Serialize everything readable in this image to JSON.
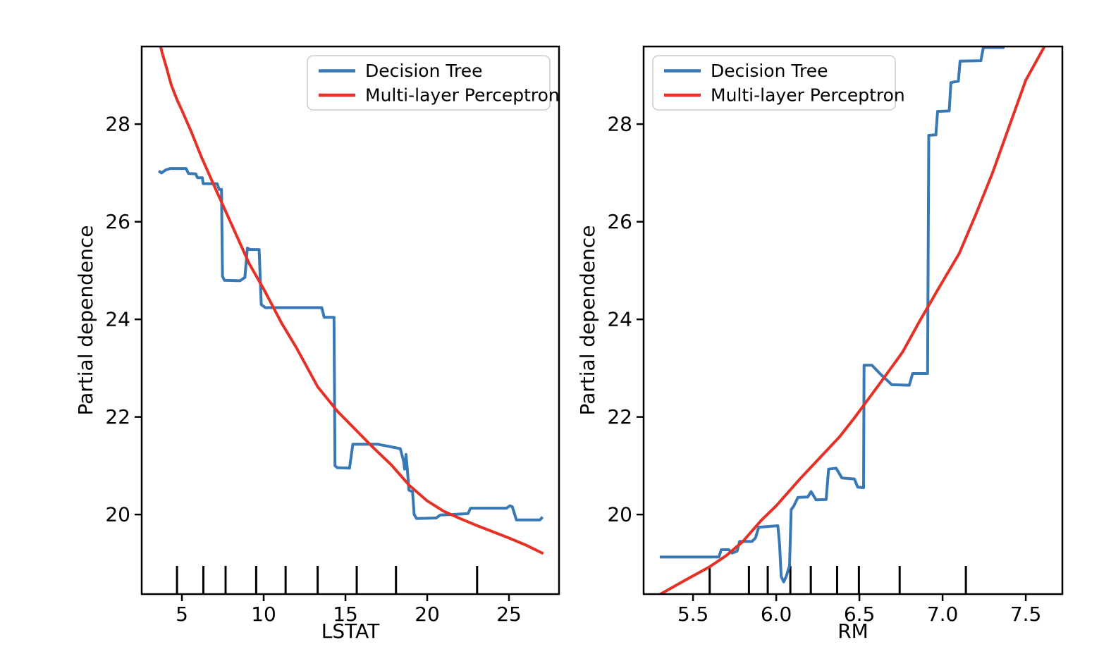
{
  "figure": {
    "background": "#ffffff",
    "axis_color": "#000000",
    "tick_label_color": "#262626",
    "legend_border_color": "#cccccc",
    "legend_bg": "#ffffff"
  },
  "chart_data": [
    {
      "type": "line",
      "title": "",
      "xlabel": "LSTAT",
      "ylabel": "Partial dependence",
      "xlim": [
        2.54,
        28.06
      ],
      "ylim": [
        18.37,
        29.59
      ],
      "grid": false,
      "xticks": {
        "values": [
          5,
          10,
          15,
          20,
          25
        ],
        "labels": [
          "5",
          "10",
          "15",
          "20",
          "25"
        ]
      },
      "yticks": {
        "values": [
          20,
          22,
          24,
          26,
          28
        ],
        "labels": [
          "20",
          "22",
          "24",
          "26",
          "28"
        ]
      },
      "legend": {
        "position": "upper right",
        "entries": [
          {
            "label": "Decision Tree",
            "color": "#3878b4"
          },
          {
            "label": "Multi-layer Perceptron",
            "color": "#e53125"
          }
        ]
      },
      "rug_x": [
        4.7,
        6.31,
        7.67,
        9.54,
        11.34,
        13.3,
        15.69,
        18.09,
        23.05
      ],
      "series": [
        {
          "name": "Decision Tree",
          "color": "#3878b4",
          "points": [
            [
              3.58,
              27.04
            ],
            [
              3.75,
              27.0
            ],
            [
              4.0,
              27.06
            ],
            [
              4.3,
              27.09
            ],
            [
              5.25,
              27.09
            ],
            [
              5.4,
              26.99
            ],
            [
              5.85,
              26.98
            ],
            [
              5.95,
              26.9
            ],
            [
              6.25,
              26.9
            ],
            [
              6.3,
              26.78
            ],
            [
              7.15,
              26.78
            ],
            [
              7.28,
              26.66
            ],
            [
              7.42,
              26.66
            ],
            [
              7.48,
              24.88
            ],
            [
              7.6,
              24.8
            ],
            [
              8.55,
              24.79
            ],
            [
              8.85,
              24.86
            ],
            [
              9.0,
              25.46
            ],
            [
              9.15,
              25.43
            ],
            [
              9.72,
              25.43
            ],
            [
              9.85,
              24.3
            ],
            [
              10.1,
              24.24
            ],
            [
              13.55,
              24.24
            ],
            [
              13.7,
              24.04
            ],
            [
              14.3,
              24.04
            ],
            [
              14.36,
              21.0
            ],
            [
              14.5,
              20.96
            ],
            [
              15.25,
              20.95
            ],
            [
              15.45,
              21.44
            ],
            [
              17.0,
              21.44
            ],
            [
              17.6,
              21.4
            ],
            [
              18.35,
              21.35
            ],
            [
              18.55,
              21.1
            ],
            [
              18.62,
              20.93
            ],
            [
              18.7,
              21.23
            ],
            [
              18.78,
              20.95
            ],
            [
              18.88,
              20.5
            ],
            [
              19.1,
              20.47
            ],
            [
              19.2,
              20.0
            ],
            [
              19.35,
              19.92
            ],
            [
              20.55,
              19.93
            ],
            [
              20.8,
              19.99
            ],
            [
              21.5,
              20.0
            ],
            [
              22.5,
              20.02
            ],
            [
              22.65,
              20.13
            ],
            [
              24.85,
              20.13
            ],
            [
              25.05,
              20.18
            ],
            [
              25.2,
              20.16
            ],
            [
              25.45,
              19.89
            ],
            [
              26.9,
              19.89
            ],
            [
              27.05,
              19.95
            ]
          ]
        },
        {
          "name": "Multi-layer Perceptron",
          "color": "#e53125",
          "points": [
            [
              3.62,
              29.7
            ],
            [
              3.8,
              29.45
            ],
            [
              4.0,
              29.22
            ],
            [
              4.35,
              28.8
            ],
            [
              4.7,
              28.5
            ],
            [
              5.0,
              28.28
            ],
            [
              5.6,
              27.82
            ],
            [
              6.2,
              27.32
            ],
            [
              7.1,
              26.64
            ],
            [
              8.0,
              25.97
            ],
            [
              9.1,
              25.15
            ],
            [
              10.0,
              24.62
            ],
            [
              11.1,
              23.92
            ],
            [
              12.0,
              23.42
            ],
            [
              13.3,
              22.62
            ],
            [
              14.5,
              22.12
            ],
            [
              15.5,
              21.78
            ],
            [
              16.7,
              21.37
            ],
            [
              17.8,
              21.02
            ],
            [
              18.9,
              20.6
            ],
            [
              20.0,
              20.28
            ],
            [
              21.0,
              20.07
            ],
            [
              22.0,
              19.92
            ],
            [
              23.0,
              19.78
            ],
            [
              24.0,
              19.65
            ],
            [
              25.0,
              19.52
            ],
            [
              26.0,
              19.38
            ],
            [
              27.1,
              19.2
            ]
          ]
        }
      ]
    },
    {
      "type": "line",
      "title": "",
      "xlabel": "RM",
      "ylabel": "Partial dependence",
      "xlim": [
        5.203,
        7.72
      ],
      "ylim": [
        18.37,
        29.59
      ],
      "grid": false,
      "xticks": {
        "values": [
          5.5,
          6.0,
          6.5,
          7.0,
          7.5
        ],
        "labels": [
          "5.5",
          "6.0",
          "6.5",
          "7.0",
          "7.5"
        ]
      },
      "yticks": {
        "values": [
          20,
          22,
          24,
          26,
          28
        ],
        "labels": [
          "20",
          "22",
          "24",
          "26",
          "28"
        ]
      },
      "legend": {
        "position": "upper left",
        "entries": [
          {
            "label": "Decision Tree",
            "color": "#3878b4"
          },
          {
            "label": "Multi-layer Perceptron",
            "color": "#e53125"
          }
        ]
      },
      "rug_x": [
        5.6,
        5.836,
        5.949,
        6.085,
        6.208,
        6.366,
        6.497,
        6.742,
        7.14
      ],
      "series": [
        {
          "name": "Decision Tree",
          "color": "#3878b4",
          "points": [
            [
              5.3,
              19.13
            ],
            [
              5.655,
              19.13
            ],
            [
              5.67,
              19.28
            ],
            [
              5.715,
              19.28
            ],
            [
              5.735,
              19.21
            ],
            [
              5.765,
              19.25
            ],
            [
              5.78,
              19.45
            ],
            [
              5.855,
              19.45
            ],
            [
              5.875,
              19.52
            ],
            [
              5.895,
              19.74
            ],
            [
              6.01,
              19.77
            ],
            [
              6.02,
              19.4
            ],
            [
              6.03,
              18.73
            ],
            [
              6.045,
              18.62
            ],
            [
              6.06,
              18.73
            ],
            [
              6.08,
              18.95
            ],
            [
              6.09,
              20.1
            ],
            [
              6.105,
              20.17
            ],
            [
              6.13,
              20.35
            ],
            [
              6.19,
              20.36
            ],
            [
              6.21,
              20.47
            ],
            [
              6.24,
              20.3
            ],
            [
              6.3,
              20.31
            ],
            [
              6.315,
              20.93
            ],
            [
              6.36,
              20.95
            ],
            [
              6.395,
              20.75
            ],
            [
              6.47,
              20.73
            ],
            [
              6.49,
              20.56
            ],
            [
              6.525,
              20.55
            ],
            [
              6.528,
              23.06
            ],
            [
              6.575,
              23.06
            ],
            [
              6.62,
              22.9
            ],
            [
              6.695,
              22.66
            ],
            [
              6.8,
              22.65
            ],
            [
              6.82,
              22.89
            ],
            [
              6.91,
              22.89
            ],
            [
              6.917,
              27.77
            ],
            [
              6.96,
              27.78
            ],
            [
              6.97,
              28.26
            ],
            [
              7.04,
              28.27
            ],
            [
              7.05,
              28.85
            ],
            [
              7.095,
              28.88
            ],
            [
              7.105,
              29.29
            ],
            [
              7.23,
              29.3
            ],
            [
              7.245,
              29.57
            ],
            [
              7.365,
              29.57
            ],
            [
              7.38,
              29.8
            ]
          ]
        },
        {
          "name": "Multi-layer Perceptron",
          "color": "#e53125",
          "points": [
            [
              5.26,
              18.3
            ],
            [
              5.31,
              18.38
            ],
            [
              5.45,
              18.65
            ],
            [
              5.6,
              18.93
            ],
            [
              5.7,
              19.16
            ],
            [
              5.8,
              19.45
            ],
            [
              5.91,
              19.88
            ],
            [
              6.0,
              20.18
            ],
            [
              6.14,
              20.72
            ],
            [
              6.25,
              21.12
            ],
            [
              6.38,
              21.59
            ],
            [
              6.47,
              21.98
            ],
            [
              6.55,
              22.35
            ],
            [
              6.63,
              22.72
            ],
            [
              6.76,
              23.33
            ],
            [
              6.86,
              23.95
            ],
            [
              6.97,
              24.6
            ],
            [
              7.1,
              25.35
            ],
            [
              7.2,
              26.15
            ],
            [
              7.3,
              27.0
            ],
            [
              7.4,
              27.95
            ],
            [
              7.5,
              28.9
            ],
            [
              7.63,
              29.7
            ]
          ]
        }
      ]
    }
  ]
}
